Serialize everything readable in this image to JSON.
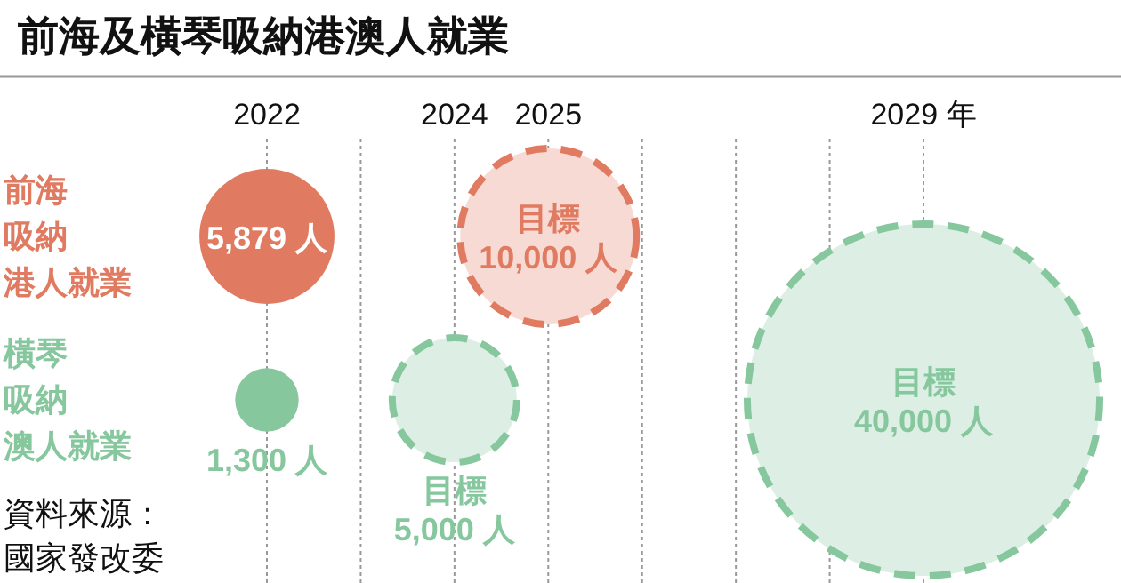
{
  "chart_data": {
    "type": "bubble",
    "title": "前海及橫琴吸納港澳人就業",
    "orientation": "horizontal",
    "categories": [
      "前海吸納港人就業",
      "橫琴吸納澳人就業"
    ],
    "xlim": [
      2022,
      2029
    ],
    "xticks": [
      {
        "value": 2022,
        "label": "2022"
      },
      {
        "value": 2023,
        "label": null
      },
      {
        "value": 2024,
        "label": "2024"
      },
      {
        "value": 2025,
        "label": "2025"
      },
      {
        "value": 2026,
        "label": null
      },
      {
        "value": 2027,
        "label": null
      },
      {
        "value": 2028,
        "label": null
      },
      {
        "value": 2029,
        "label": "2029 年"
      }
    ],
    "grid": "x",
    "series": [
      {
        "colors": [
          "#e07b62",
          "#86c79e"
        ],
        "values": [
          2022,
          2022
        ],
        "sizes": [
          5879,
          1300
        ],
        "line_style": "solid",
        "value_labels": [
          "5,879 人",
          "1,300 人"
        ]
      },
      {
        "name": "目標",
        "colors": [
          "#e07b62",
          "#86c79e"
        ],
        "values": [
          2025,
          2024
        ],
        "sizes": [
          10000,
          5000
        ],
        "line_style": "dashed",
        "value_labels": [
          "10,000 人",
          "5,000 人"
        ]
      },
      {
        "name": "目標",
        "colors": [
          null,
          "#86c79e"
        ],
        "values": [
          null,
          2029
        ],
        "sizes": [
          null,
          40000
        ],
        "line_style": "dashed",
        "value_labels": [
          null,
          "40,000 人"
        ]
      }
    ],
    "annotations": [
      "資料來源：國家發改委"
    ]
  }
}
